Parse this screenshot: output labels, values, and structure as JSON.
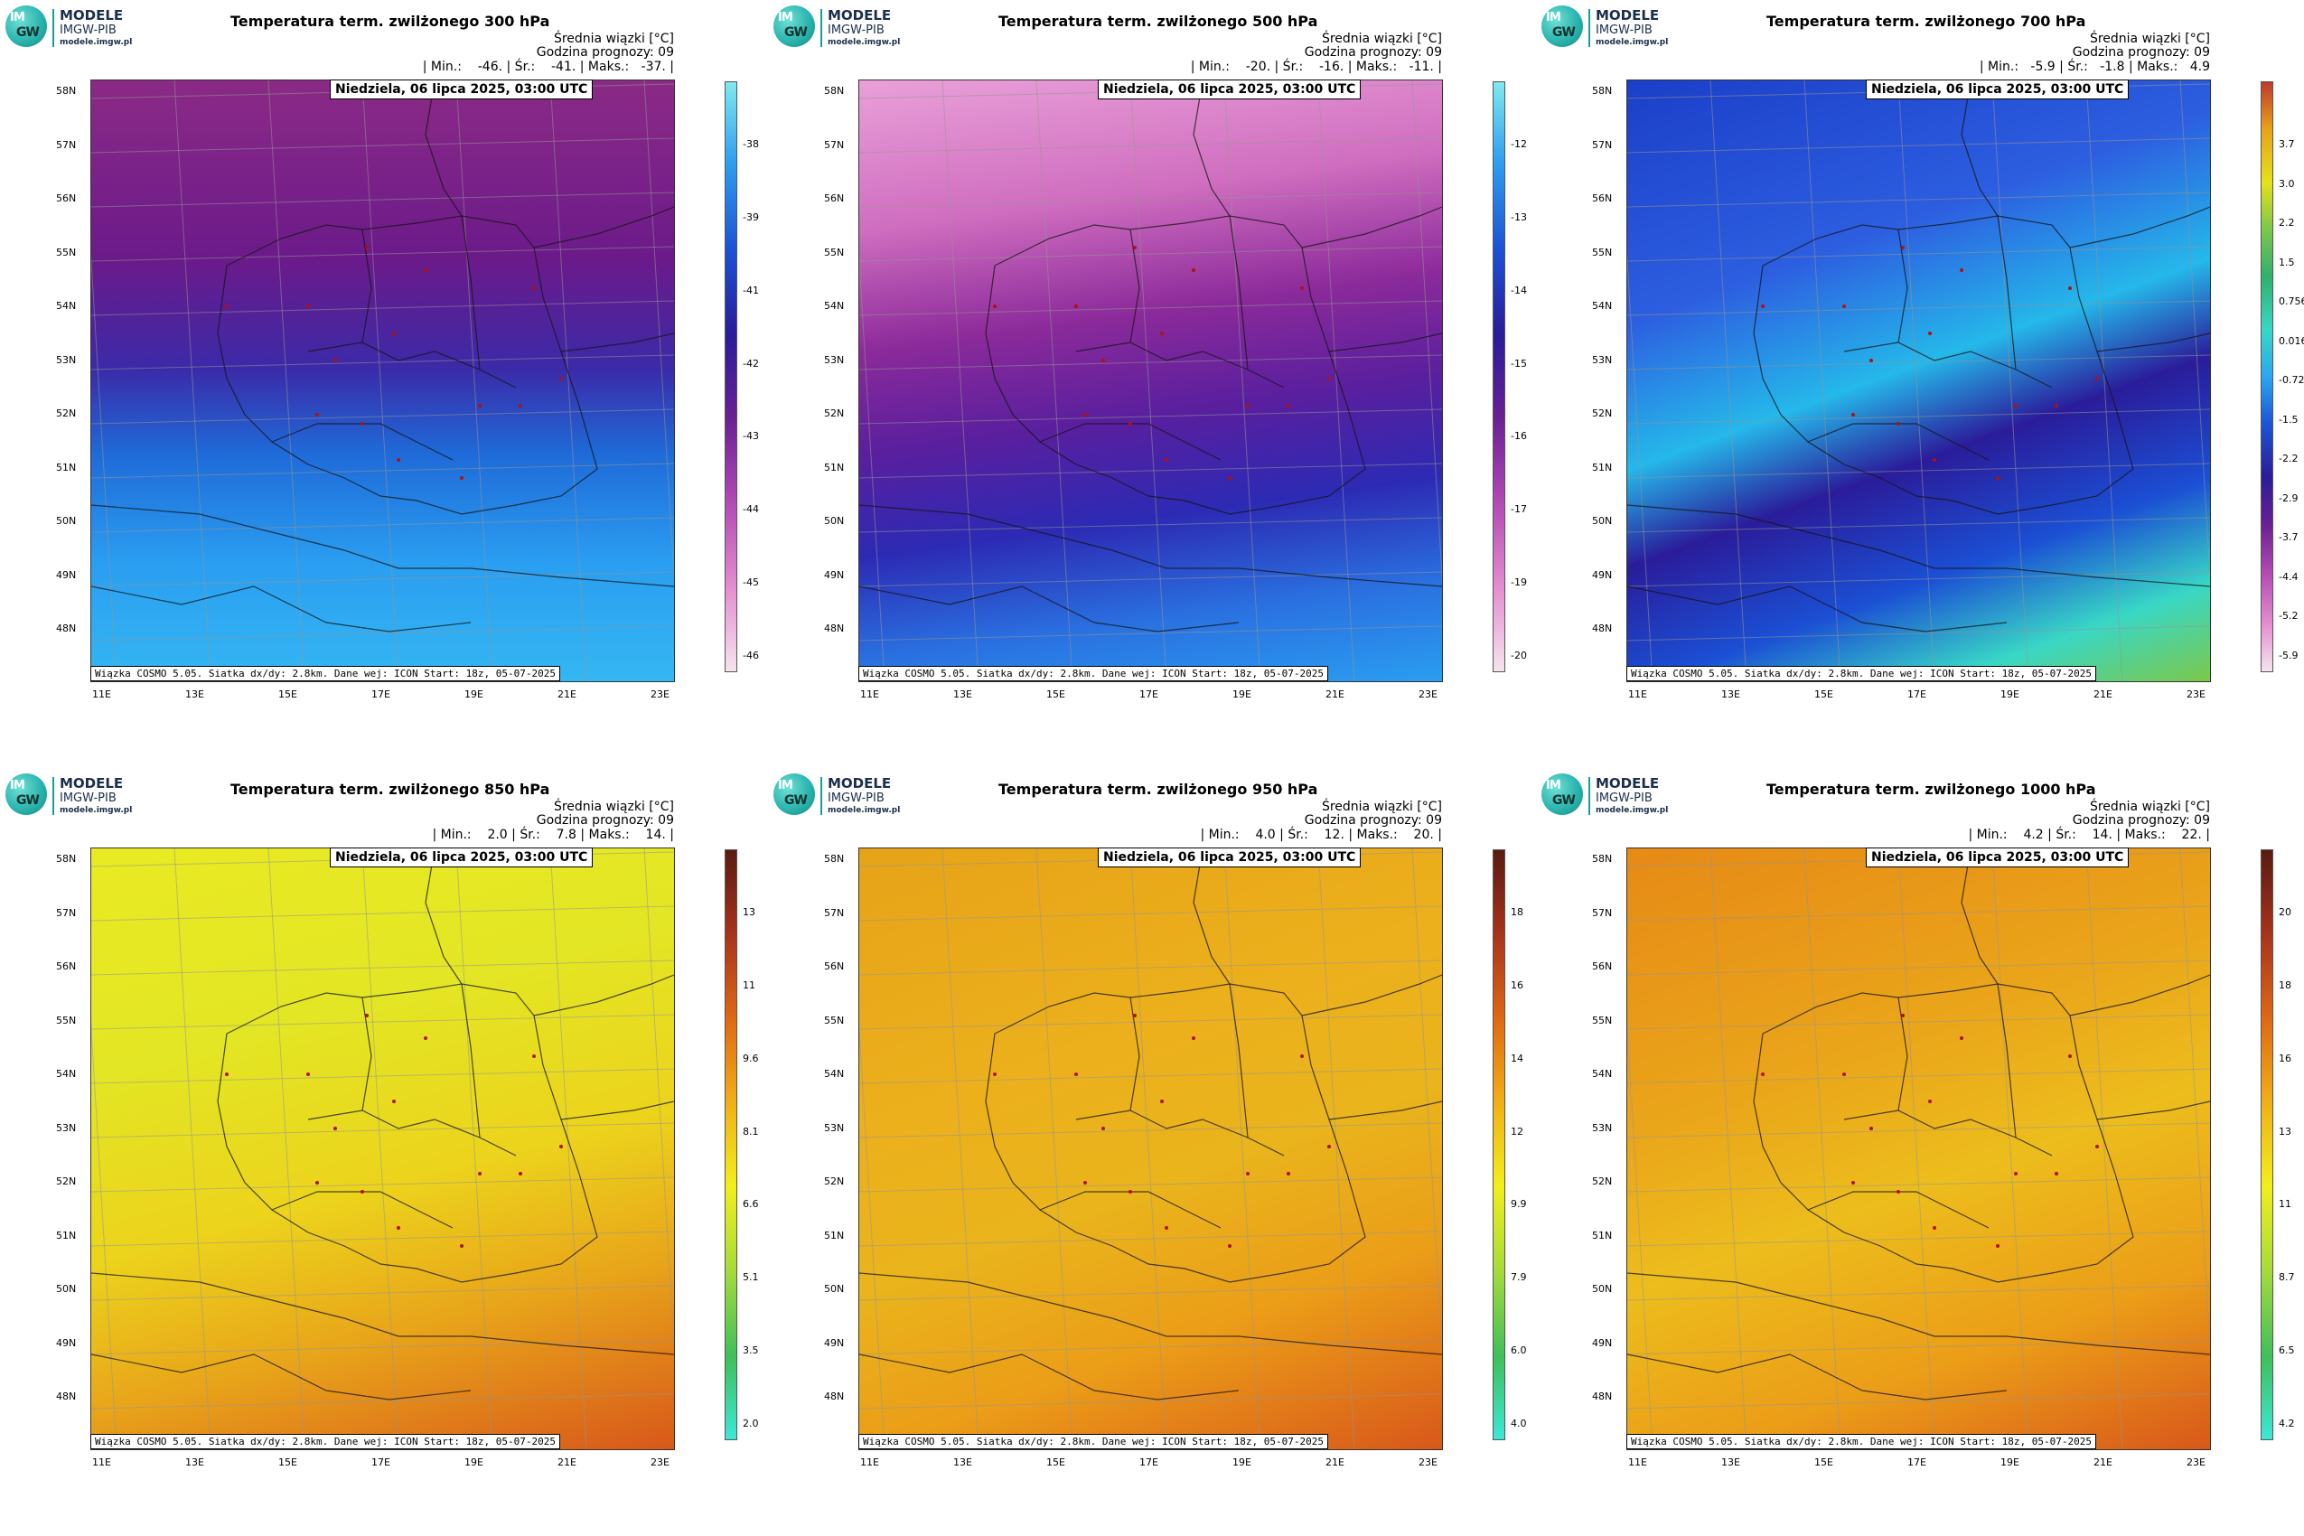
{
  "logo": {
    "line1": "MODELE",
    "line2": "IMGW-PIB",
    "line3": "modele.imgw.pl",
    "mark_top": "IM",
    "mark_bottom": "GW"
  },
  "meta_label": "Średnia wiązki [°C]",
  "forecast_hour": "Godzina prognozy: 09",
  "date_label": "Niedziela, 06 lipca 2025, 03:00 UTC",
  "footer": "Wiązka COSMO 5.05. Siatka dx/dy: 2.8km. Dane wej: ICON Start: 18z, 05-07-2025",
  "lat_labels": [
    "58N",
    "57N",
    "56N",
    "55N",
    "54N",
    "53N",
    "52N",
    "51N",
    "50N",
    "49N",
    "48N"
  ],
  "lon_labels": [
    "11E",
    "13E",
    "15E",
    "17E",
    "19E",
    "21E",
    "23E"
  ],
  "panels": [
    {
      "title": "Temperatura term. zwilżonego 300 hPa",
      "stats": "| Min.:    -46. | Śr.:    -41. | Maks.:   -37. |",
      "ticks": [
        "-38",
        "-39",
        "-41",
        "-42",
        "-43",
        "-44",
        "-45",
        "-46"
      ],
      "colors": [
        "#7fe9ef",
        "#2d9cf0",
        "#1b4fd4",
        "#2a1c9a",
        "#6a1f94",
        "#b148b5",
        "#e58ed0",
        "#f6e4ef"
      ],
      "field": "cold"
    },
    {
      "title": "Temperatura term. zwilżonego 500 hPa",
      "stats": "| Min.:    -20. | Śr.:    -16. | Maks.:   -11. |",
      "ticks": [
        "-12",
        "-13",
        "-14",
        "-15",
        "-16",
        "-17",
        "-19",
        "-20"
      ],
      "colors": [
        "#7fe9ef",
        "#2d9cf0",
        "#1b4fd4",
        "#2a1c9a",
        "#6a1f94",
        "#b148b5",
        "#e58ed0",
        "#f6e4ef"
      ],
      "field": "cold500"
    },
    {
      "title": "Temperatura term. zwilżonego 700 hPa",
      "stats": "| Min.:   -5.9 | Śr.:   -1.8 | Maks.:   4.9",
      "ticks": [
        "3.7",
        "3.0",
        "2.2",
        "1.5",
        "0.756",
        "0.016",
        "-0.725",
        "-1.5",
        "-2.2",
        "-2.9",
        "-3.7",
        "-4.4",
        "-5.2",
        "-5.9"
      ],
      "colors": [
        "#c0392b",
        "#e8a21a",
        "#e7e01a",
        "#7cc84a",
        "#2fb16d",
        "#39d7c6",
        "#2aa7f0",
        "#1b55d8",
        "#2a1c9a",
        "#6a1f94",
        "#b148b5",
        "#e58ed0",
        "#f6e4ef"
      ],
      "field": "mixed"
    },
    {
      "title": "Temperatura term. zwilżonego 850 hPa",
      "stats": "| Min.:    2.0 | Śr.:    7.8 | Maks.:    14. |",
      "ticks": [
        "13",
        "11",
        "9.6",
        "8.1",
        "6.6",
        "5.1",
        "3.5",
        "2.0"
      ],
      "colors": [
        "#5a1a10",
        "#a8321a",
        "#e06a14",
        "#f2b016",
        "#f3ee1c",
        "#a9dc3a",
        "#3ec05a",
        "#3de8d8"
      ],
      "field": "warm850"
    },
    {
      "title": "Temperatura term. zwilżonego 950 hPa",
      "stats": "| Min.:    4.0 | Śr.:    12. | Maks.:    20. |",
      "ticks": [
        "18",
        "16",
        "14",
        "12",
        "9.9",
        "7.9",
        "6.0",
        "4.0"
      ],
      "colors": [
        "#5a1a10",
        "#a8321a",
        "#e06a14",
        "#f2b016",
        "#f3ee1c",
        "#a9dc3a",
        "#3ec05a",
        "#3de8d8"
      ],
      "field": "warm"
    },
    {
      "title": "Temperatura term. zwilżonego 1000 hPa",
      "stats": "| Min.:    4.2 | Śr.:    14. | Maks.:    22. |",
      "ticks": [
        "20",
        "18",
        "16",
        "13",
        "11",
        "8.7",
        "6.5",
        "4.2"
      ],
      "colors": [
        "#5a1a10",
        "#a8321a",
        "#e06a14",
        "#f2b016",
        "#f3ee1c",
        "#a9dc3a",
        "#3ec05a",
        "#3de8d8"
      ],
      "field": "warm1000"
    }
  ]
}
